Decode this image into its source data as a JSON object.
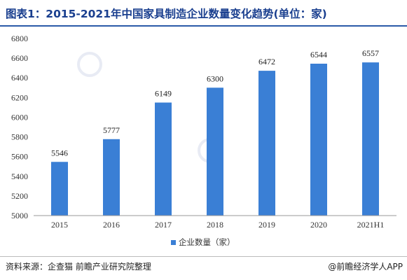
{
  "header": {
    "title": "图表1：2015-2021年中国家具制造企业数量变化趋势(单位：家)"
  },
  "footer": {
    "source": "资料来源：企查猫 前瞻产业研究院整理",
    "brand": "@前瞻经济学人APP"
  },
  "chart_data": {
    "type": "bar",
    "categories": [
      "2015",
      "2016",
      "2017",
      "2018",
      "2019",
      "2020",
      "2021H1"
    ],
    "series": [
      {
        "name": "企业数量（家）",
        "values": [
          5546,
          5777,
          6149,
          6300,
          6472,
          6544,
          6557
        ]
      }
    ],
    "ylim": [
      5000,
      6800
    ],
    "yticks": [
      5000,
      5200,
      5400,
      5600,
      5800,
      6000,
      6200,
      6400,
      6600,
      6800
    ],
    "grid": false,
    "legend": "bottom-center",
    "bar_color": "#3a7fd5"
  }
}
